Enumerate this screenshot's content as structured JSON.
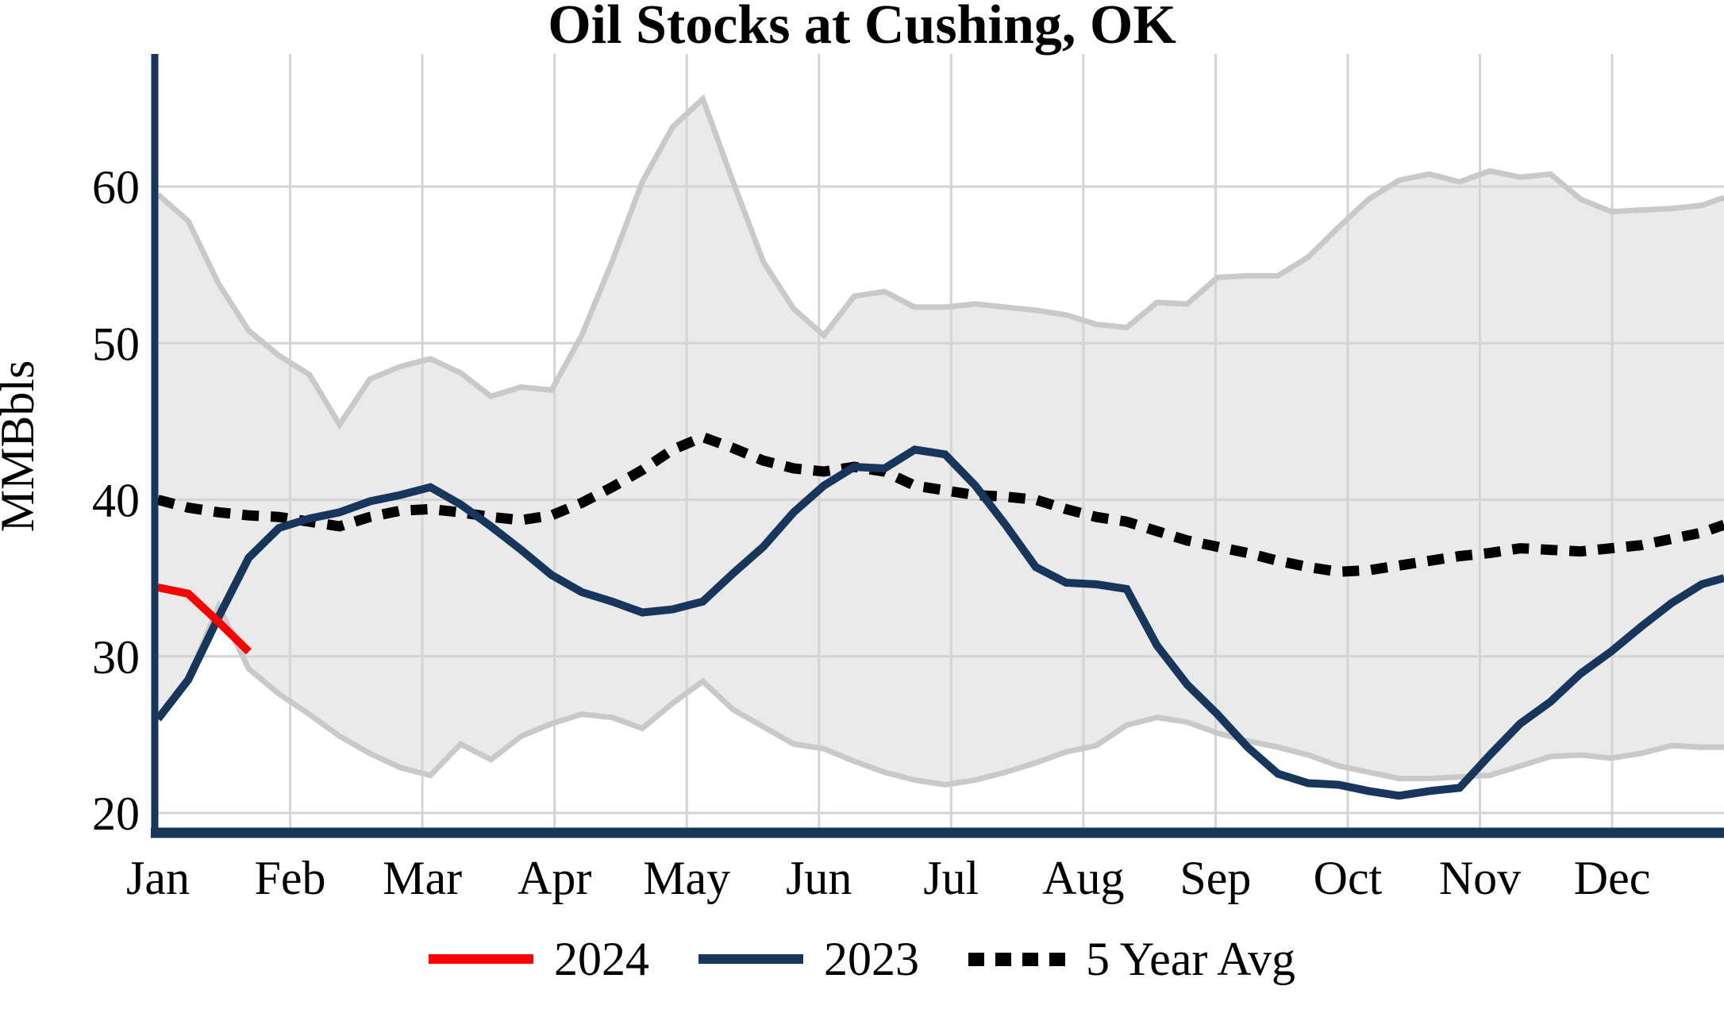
{
  "chart_data": {
    "type": "line",
    "title": "Oil Stocks at Cushing, OK",
    "ylabel": "MMBbls",
    "y_ticks": [
      20,
      30,
      40,
      50,
      60
    ],
    "ylim": [
      19,
      67
    ],
    "x_tick_labels": [
      "Jan",
      "Feb",
      "Mar",
      "Apr",
      "May",
      "Jun",
      "Jul",
      "Aug",
      "Sep",
      "Oct",
      "Nov",
      "Dec"
    ],
    "x_resolution": "weekly",
    "grid": true,
    "legend_position": "bottom",
    "legend": [
      {
        "label": "2024",
        "color": "#ff0000",
        "style": "solid"
      },
      {
        "label": "2023",
        "color": "#17365c",
        "style": "solid"
      },
      {
        "label": "5 Year Avg",
        "color": "#000000",
        "style": "dotted"
      }
    ],
    "band": {
      "name": "5-year range",
      "fill": "#eaeaea",
      "edge_color": "#c9c9c9",
      "upper": [
        59.5,
        57.8,
        53.8,
        50.8,
        49.2,
        48.0,
        44.8,
        47.7,
        48.5,
        49.0,
        48.1,
        46.6,
        47.2,
        47.0,
        50.5,
        55.2,
        60.3,
        63.8,
        65.6,
        60.3,
        55.2,
        52.2,
        50.5,
        53.0,
        53.3,
        52.3,
        52.3,
        52.5,
        52.3,
        52.1,
        51.8,
        51.2,
        51.0,
        52.6,
        52.5,
        54.2,
        54.3,
        54.3,
        55.5,
        57.4,
        59.2,
        60.4,
        60.8,
        60.3,
        61.0,
        60.6,
        60.8,
        59.2,
        58.4,
        58.5,
        58.6,
        58.8
      ],
      "upper_edge_value": 59.3,
      "lower": [
        26.0,
        28.6,
        33.2,
        29.2,
        27.6,
        26.3,
        24.9,
        23.8,
        22.9,
        22.4,
        24.4,
        23.4,
        24.9,
        25.7,
        26.3,
        26.1,
        25.4,
        27.0,
        28.4,
        26.6,
        25.5,
        24.4,
        24.1,
        23.3,
        22.6,
        22.1,
        21.8,
        22.1,
        22.6,
        23.2,
        23.9,
        24.3,
        25.6,
        26.1,
        25.8,
        25.1,
        24.6,
        24.2,
        23.7,
        23.0,
        22.6,
        22.2,
        22.2,
        22.3,
        22.4,
        23.0,
        23.6,
        23.7,
        23.5,
        23.8,
        24.3,
        24.2
      ],
      "lower_edge_value": 24.2
    },
    "series": [
      {
        "name": "2024",
        "color": "#ff0000",
        "style": "solid",
        "width": 10,
        "values": [
          34.4,
          34.0,
          32.2,
          30.3
        ],
        "edge_value": null
      },
      {
        "name": "2023",
        "color": "#17365c",
        "style": "solid",
        "width": 10,
        "values": [
          26.0,
          28.5,
          32.5,
          36.3,
          38.2,
          38.8,
          39.2,
          39.9,
          40.3,
          40.8,
          39.7,
          38.3,
          36.8,
          35.2,
          34.1,
          33.5,
          32.8,
          33.0,
          33.5,
          35.3,
          37.0,
          39.2,
          40.9,
          42.1,
          42.0,
          43.2,
          42.9,
          40.9,
          38.4,
          35.7,
          34.7,
          34.6,
          34.3,
          30.7,
          28.2,
          26.3,
          24.2,
          22.5,
          21.9,
          21.8,
          21.4,
          21.1,
          21.4,
          21.6,
          23.7,
          25.7,
          27.1,
          28.9,
          30.3,
          31.9,
          33.4,
          34.6
        ],
        "edge_value": 35.0
      },
      {
        "name": "5 Year Avg",
        "color": "#000000",
        "style": "dotted",
        "width": 13,
        "values": [
          40.0,
          39.5,
          39.2,
          39.0,
          38.9,
          38.6,
          38.3,
          38.9,
          39.3,
          39.4,
          39.2,
          38.9,
          38.7,
          39.0,
          39.8,
          40.8,
          41.9,
          43.2,
          44.0,
          43.3,
          42.5,
          42.0,
          41.8,
          42.1,
          41.8,
          40.9,
          40.6,
          40.3,
          40.2,
          40.0,
          39.4,
          38.9,
          38.6,
          38.0,
          37.4,
          37.0,
          36.6,
          36.1,
          35.7,
          35.4,
          35.5,
          35.8,
          36.1,
          36.4,
          36.6,
          36.9,
          36.8,
          36.7,
          36.9,
          37.1,
          37.5,
          37.9
        ],
        "edge_value": 38.4
      }
    ],
    "colors": {
      "axis": "#17365c",
      "gridline": "#d4d4d4",
      "background": "#ffffff"
    }
  }
}
